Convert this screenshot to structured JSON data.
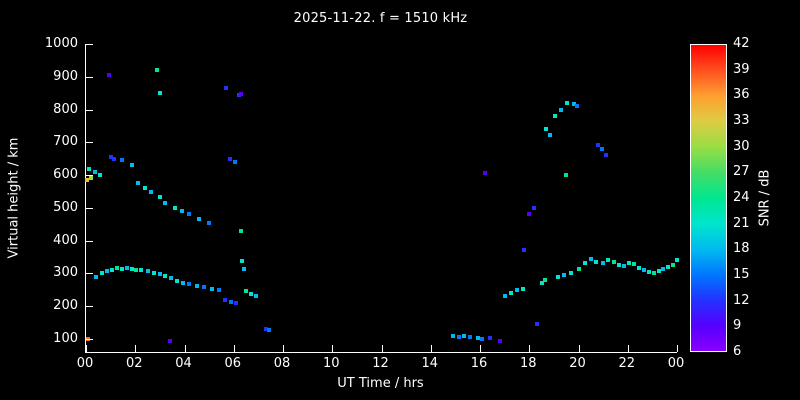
{
  "title": "2025-11-22. f = 1510 kHz",
  "chart_data": {
    "type": "scatter",
    "title": "2025-11-22. f = 1510 kHz",
    "xlabel": "UT Time / hrs",
    "ylabel": "Virtual height / km",
    "colorbar_label": "SNR / dB",
    "xlim": [
      0,
      24
    ],
    "ylim": [
      60,
      1000
    ],
    "background": "#000000",
    "axis_color": "#ffffff",
    "grid": false,
    "x_ticks": [
      {
        "value": 0,
        "label": "00"
      },
      {
        "value": 2,
        "label": "02"
      },
      {
        "value": 4,
        "label": "04"
      },
      {
        "value": 6,
        "label": "06"
      },
      {
        "value": 8,
        "label": "08"
      },
      {
        "value": 10,
        "label": "10"
      },
      {
        "value": 12,
        "label": "12"
      },
      {
        "value": 14,
        "label": "14"
      },
      {
        "value": 16,
        "label": "16"
      },
      {
        "value": 18,
        "label": "18"
      },
      {
        "value": 20,
        "label": "20"
      },
      {
        "value": 22,
        "label": "22"
      },
      {
        "value": 24,
        "label": "00"
      }
    ],
    "y_ticks": [
      100,
      200,
      300,
      400,
      500,
      600,
      700,
      800,
      900,
      1000
    ],
    "colorbar": {
      "min": 6,
      "max": 42,
      "ticks": [
        6,
        9,
        12,
        15,
        18,
        21,
        24,
        27,
        30,
        33,
        36,
        39,
        42
      ],
      "stops": [
        {
          "value": 6,
          "color": "#8800ff"
        },
        {
          "value": 9,
          "color": "#5500ff"
        },
        {
          "value": 12,
          "color": "#2233ff"
        },
        {
          "value": 15,
          "color": "#0077ff"
        },
        {
          "value": 18,
          "color": "#00bbee"
        },
        {
          "value": 21,
          "color": "#00e6cc"
        },
        {
          "value": 24,
          "color": "#00e690"
        },
        {
          "value": 27,
          "color": "#44dd66"
        },
        {
          "value": 30,
          "color": "#99dd44"
        },
        {
          "value": 33,
          "color": "#ddcc44"
        },
        {
          "value": 36,
          "color": "#ffa030"
        },
        {
          "value": 39,
          "color": "#ff5020"
        },
        {
          "value": 42,
          "color": "#ff0000"
        }
      ]
    },
    "points": [
      [
        0.08,
        100,
        38
      ],
      [
        0.05,
        585,
        34
      ],
      [
        0.2,
        592,
        30
      ],
      [
        0.12,
        620,
        21
      ],
      [
        0.35,
        610,
        18
      ],
      [
        0.55,
        600,
        21
      ],
      [
        0.95,
        905,
        9
      ],
      [
        1.0,
        655,
        12
      ],
      [
        1.15,
        650,
        12
      ],
      [
        1.45,
        645,
        15
      ],
      [
        1.85,
        632,
        18
      ],
      [
        2.9,
        920,
        24
      ],
      [
        3.0,
        850,
        21
      ],
      [
        2.1,
        575,
        18
      ],
      [
        2.4,
        560,
        21
      ],
      [
        2.65,
        548,
        18
      ],
      [
        3.0,
        532,
        21
      ],
      [
        3.2,
        515,
        18
      ],
      [
        3.6,
        500,
        21
      ],
      [
        3.9,
        490,
        18
      ],
      [
        4.2,
        480,
        15
      ],
      [
        4.6,
        465,
        18
      ],
      [
        5.0,
        455,
        15
      ],
      [
        5.7,
        865,
        12
      ],
      [
        6.2,
        843,
        12
      ],
      [
        6.28,
        848,
        9
      ],
      [
        5.85,
        650,
        12
      ],
      [
        6.05,
        640,
        15
      ],
      [
        6.3,
        430,
        24
      ],
      [
        6.35,
        338,
        21
      ],
      [
        6.42,
        312,
        18
      ],
      [
        6.5,
        245,
        24
      ],
      [
        6.7,
        236,
        21
      ],
      [
        6.9,
        230,
        18
      ],
      [
        7.3,
        131,
        12
      ],
      [
        7.45,
        126,
        15
      ],
      [
        3.4,
        95,
        9
      ],
      [
        0.4,
        290,
        18
      ],
      [
        0.65,
        300,
        21
      ],
      [
        0.85,
        306,
        18
      ],
      [
        1.05,
        310,
        21
      ],
      [
        1.25,
        316,
        24
      ],
      [
        1.45,
        312,
        21
      ],
      [
        1.65,
        316,
        18
      ],
      [
        1.85,
        313,
        21
      ],
      [
        2.05,
        311,
        24
      ],
      [
        2.25,
        309,
        21
      ],
      [
        2.5,
        306,
        18
      ],
      [
        2.75,
        301,
        21
      ],
      [
        3.0,
        298,
        18
      ],
      [
        3.2,
        291,
        21
      ],
      [
        3.45,
        286,
        18
      ],
      [
        3.7,
        276,
        21
      ],
      [
        3.95,
        271,
        18
      ],
      [
        4.2,
        268,
        15
      ],
      [
        4.5,
        262,
        18
      ],
      [
        4.8,
        258,
        15
      ],
      [
        5.1,
        252,
        18
      ],
      [
        5.4,
        248,
        15
      ],
      [
        5.65,
        220,
        12
      ],
      [
        5.9,
        213,
        15
      ],
      [
        6.1,
        210,
        12
      ],
      [
        14.9,
        110,
        18
      ],
      [
        15.15,
        106,
        15
      ],
      [
        15.35,
        108,
        18
      ],
      [
        15.6,
        105,
        15
      ],
      [
        15.9,
        102,
        18
      ],
      [
        16.1,
        100,
        15
      ],
      [
        16.4,
        104,
        12
      ],
      [
        16.8,
        95,
        9
      ],
      [
        16.2,
        605,
        9
      ],
      [
        17.0,
        231,
        18
      ],
      [
        17.25,
        239,
        21
      ],
      [
        17.5,
        248,
        18
      ],
      [
        17.75,
        252,
        21
      ],
      [
        17.8,
        370,
        12
      ],
      [
        18.0,
        480,
        9
      ],
      [
        18.2,
        500,
        12
      ],
      [
        18.3,
        146,
        12
      ],
      [
        18.5,
        270,
        21
      ],
      [
        18.65,
        281,
        24
      ],
      [
        18.7,
        740,
        21
      ],
      [
        18.85,
        722,
        18
      ],
      [
        19.05,
        780,
        21
      ],
      [
        19.3,
        800,
        18
      ],
      [
        19.55,
        820,
        21
      ],
      [
        19.8,
        818,
        18
      ],
      [
        19.95,
        812,
        15
      ],
      [
        19.5,
        600,
        24
      ],
      [
        19.15,
        290,
        21
      ],
      [
        19.4,
        296,
        18
      ],
      [
        19.7,
        302,
        21
      ],
      [
        20.0,
        312,
        24
      ],
      [
        20.25,
        331,
        21
      ],
      [
        20.5,
        345,
        18
      ],
      [
        20.7,
        336,
        21
      ],
      [
        20.8,
        692,
        12
      ],
      [
        20.95,
        681,
        15
      ],
      [
        21.1,
        662,
        12
      ],
      [
        21.0,
        331,
        18
      ],
      [
        21.2,
        341,
        21
      ],
      [
        21.45,
        336,
        24
      ],
      [
        21.65,
        326,
        21
      ],
      [
        21.85,
        321,
        18
      ],
      [
        22.05,
        331,
        21
      ],
      [
        22.25,
        329,
        24
      ],
      [
        22.45,
        316,
        21
      ],
      [
        22.65,
        309,
        18
      ],
      [
        22.85,
        303,
        21
      ],
      [
        23.05,
        300,
        24
      ],
      [
        23.25,
        306,
        21
      ],
      [
        23.45,
        313,
        18
      ],
      [
        23.65,
        319,
        21
      ],
      [
        23.85,
        326,
        24
      ],
      [
        24.0,
        341,
        21
      ]
    ]
  }
}
